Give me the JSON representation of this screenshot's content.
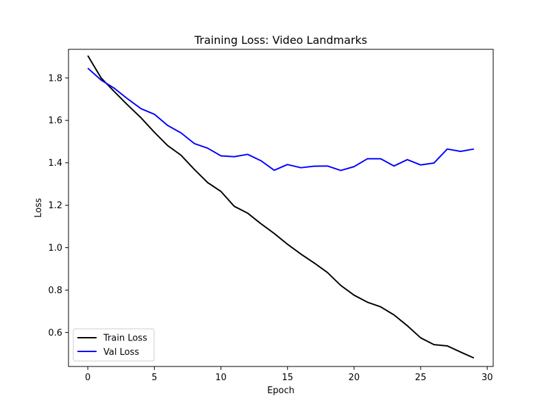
{
  "chart_data": {
    "type": "line",
    "title": "Training Loss: Video Landmarks",
    "xlabel": "Epoch",
    "ylabel": "Loss",
    "xlim": [
      -1.45,
      30.45
    ],
    "ylim": [
      0.44,
      1.935
    ],
    "x_ticks": [
      0,
      5,
      10,
      15,
      20,
      25,
      30
    ],
    "y_ticks": [
      0.6,
      0.8,
      1.0,
      1.2,
      1.4,
      1.6,
      1.8
    ],
    "y_tick_labels": [
      "0.6",
      "0.8",
      "1.0",
      "1.2",
      "1.4",
      "1.6",
      "1.8"
    ],
    "x_tick_labels": [
      "0",
      "5",
      "10",
      "15",
      "20",
      "25",
      "30"
    ],
    "grid": false,
    "legend_position": "lower-left",
    "x": [
      0,
      1,
      2,
      3,
      4,
      5,
      6,
      7,
      8,
      9,
      10,
      11,
      12,
      13,
      14,
      15,
      16,
      17,
      18,
      19,
      20,
      21,
      22,
      23,
      24,
      25,
      26,
      27,
      28,
      29
    ],
    "series": [
      {
        "name": "Train Loss",
        "color": "#000000",
        "values": [
          1.905,
          1.8,
          1.735,
          1.672,
          1.612,
          1.544,
          1.481,
          1.436,
          1.369,
          1.307,
          1.265,
          1.195,
          1.163,
          1.113,
          1.067,
          1.016,
          0.97,
          0.928,
          0.883,
          0.822,
          0.776,
          0.743,
          0.721,
          0.683,
          0.632,
          0.575,
          0.543,
          0.537,
          0.508,
          0.48
        ]
      },
      {
        "name": "Val Loss",
        "color": "#0000ff",
        "values": [
          1.846,
          1.79,
          1.751,
          1.701,
          1.655,
          1.629,
          1.576,
          1.541,
          1.491,
          1.469,
          1.433,
          1.429,
          1.44,
          1.41,
          1.365,
          1.392,
          1.377,
          1.384,
          1.385,
          1.364,
          1.382,
          1.419,
          1.419,
          1.385,
          1.415,
          1.39,
          1.399,
          1.465,
          1.454,
          1.465
        ]
      }
    ]
  }
}
